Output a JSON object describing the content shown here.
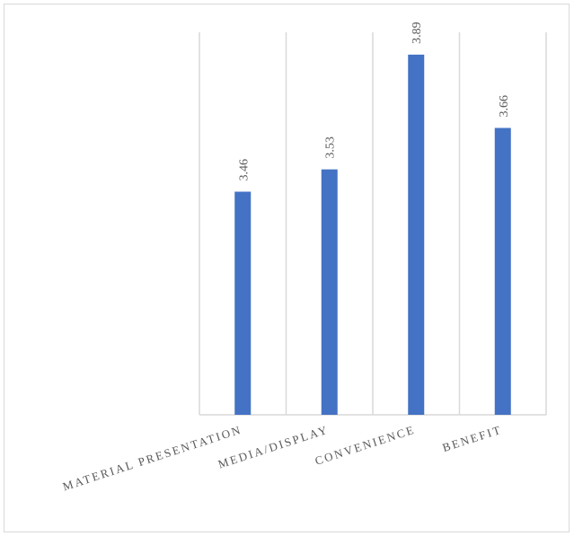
{
  "chart_data": {
    "type": "bar",
    "categories": [
      "MATERIAL PRESENTATION",
      "MEDIA/DISPLAY",
      "CONVENIENCE",
      "BENEFIT"
    ],
    "values": [
      3.46,
      3.53,
      3.89,
      3.66
    ],
    "data_labels": [
      "3.46",
      "3.53",
      "3.89",
      "3.66"
    ],
    "title": "",
    "xlabel": "",
    "ylabel": "",
    "ylim": [
      2.76,
      3.96
    ],
    "grid": true,
    "legend": "none",
    "colors": {
      "bar": "#4472c4",
      "grid": "#d9d9d9",
      "text": "#595959"
    }
  }
}
